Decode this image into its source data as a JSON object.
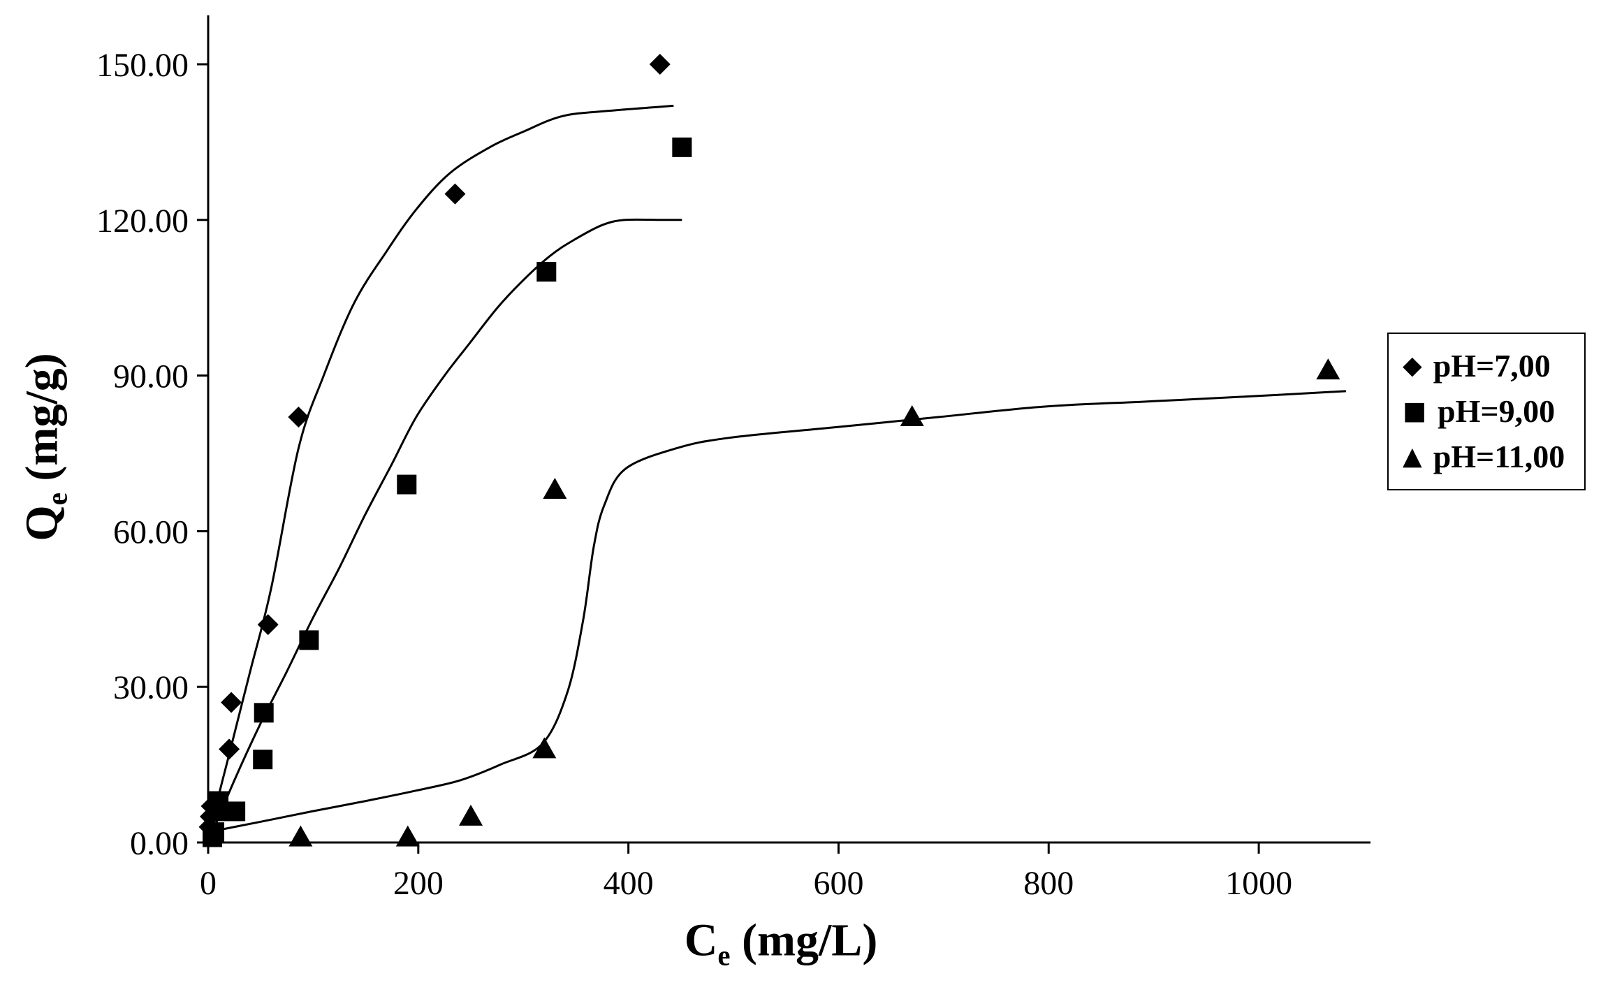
{
  "chart_data": {
    "type": "scatter",
    "title": "",
    "xlabel": "Ce (mg/L)",
    "ylabel": "Qe (mg/g)",
    "xlabel_parts": {
      "main": "C",
      "sub": "e",
      "rest": " (mg/L)"
    },
    "ylabel_parts": {
      "main": "Q",
      "sub": "e",
      "rest": " (mg/g)"
    },
    "grid": false,
    "background": "#ffffff",
    "axis_color": "#000000",
    "legend_position": "right",
    "x_axis": {
      "min": 0,
      "max": 1105,
      "tick_values": [
        0,
        200,
        400,
        600,
        800,
        1000
      ],
      "tick_labels": [
        "0",
        "200",
        "400",
        "600",
        "800",
        "1000"
      ]
    },
    "y_axis": {
      "min": 0,
      "max": 150,
      "tick_values": [
        0,
        30,
        60,
        90,
        120,
        150
      ],
      "tick_labels": [
        "0.00",
        "30.00",
        "60.00",
        "90.00",
        "120.00",
        "150.00"
      ]
    },
    "series": [
      {
        "name": "pH=7,00",
        "marker": "diamond",
        "color": "#000000",
        "points": [
          [
            1,
            3
          ],
          [
            2,
            5
          ],
          [
            3,
            7
          ],
          [
            20,
            18
          ],
          [
            22,
            27
          ],
          [
            57,
            42
          ],
          [
            86,
            82
          ],
          [
            235,
            125
          ],
          [
            430,
            150
          ]
        ],
        "fit_curve": [
          [
            0,
            0
          ],
          [
            10,
            9
          ],
          [
            20,
            17
          ],
          [
            40,
            33
          ],
          [
            60,
            49
          ],
          [
            86,
            76
          ],
          [
            110,
            90
          ],
          [
            139,
            104
          ],
          [
            170,
            114
          ],
          [
            198,
            122
          ],
          [
            230,
            129
          ],
          [
            268,
            134
          ],
          [
            300,
            137
          ],
          [
            337,
            140
          ],
          [
            380,
            141
          ],
          [
            443,
            142
          ]
        ]
      },
      {
        "name": "pH=9,00",
        "marker": "square",
        "color": "#000000",
        "points": [
          [
            4,
            1
          ],
          [
            6,
            2
          ],
          [
            8,
            6
          ],
          [
            10,
            8
          ],
          [
            26,
            6
          ],
          [
            52,
            16
          ],
          [
            53,
            25
          ],
          [
            96,
            39
          ],
          [
            189,
            69
          ],
          [
            322,
            110
          ],
          [
            451,
            134
          ]
        ],
        "fit_curve": [
          [
            0,
            0
          ],
          [
            25,
            12
          ],
          [
            50,
            23
          ],
          [
            75,
            33
          ],
          [
            99,
            43
          ],
          [
            125,
            53
          ],
          [
            149,
            63
          ],
          [
            175,
            73
          ],
          [
            198,
            82
          ],
          [
            225,
            90
          ],
          [
            248,
            96
          ],
          [
            275,
            103
          ],
          [
            298,
            108
          ],
          [
            325,
            113
          ],
          [
            347,
            116
          ],
          [
            375,
            119
          ],
          [
            397,
            120
          ],
          [
            430,
            120
          ],
          [
            451,
            120
          ]
        ]
      },
      {
        "name": "pH=11,00",
        "marker": "triangle",
        "color": "#000000",
        "points": [
          [
            88,
            1
          ],
          [
            190,
            1
          ],
          [
            250,
            5
          ],
          [
            320,
            18
          ],
          [
            330,
            68
          ],
          [
            670,
            82
          ],
          [
            1066,
            91
          ]
        ],
        "fit_curve": [
          [
            0,
            2
          ],
          [
            50,
            4
          ],
          [
            99,
            6
          ],
          [
            150,
            8
          ],
          [
            198,
            10
          ],
          [
            240,
            12
          ],
          [
            278,
            15
          ],
          [
            318,
            19
          ],
          [
            342,
            29
          ],
          [
            357,
            43
          ],
          [
            367,
            57
          ],
          [
            377,
            65
          ],
          [
            397,
            72
          ],
          [
            446,
            76
          ],
          [
            496,
            78
          ],
          [
            595,
            80
          ],
          [
            695,
            82
          ],
          [
            794,
            84
          ],
          [
            894,
            85
          ],
          [
            993,
            86
          ],
          [
            1083,
            87
          ]
        ]
      }
    ]
  }
}
